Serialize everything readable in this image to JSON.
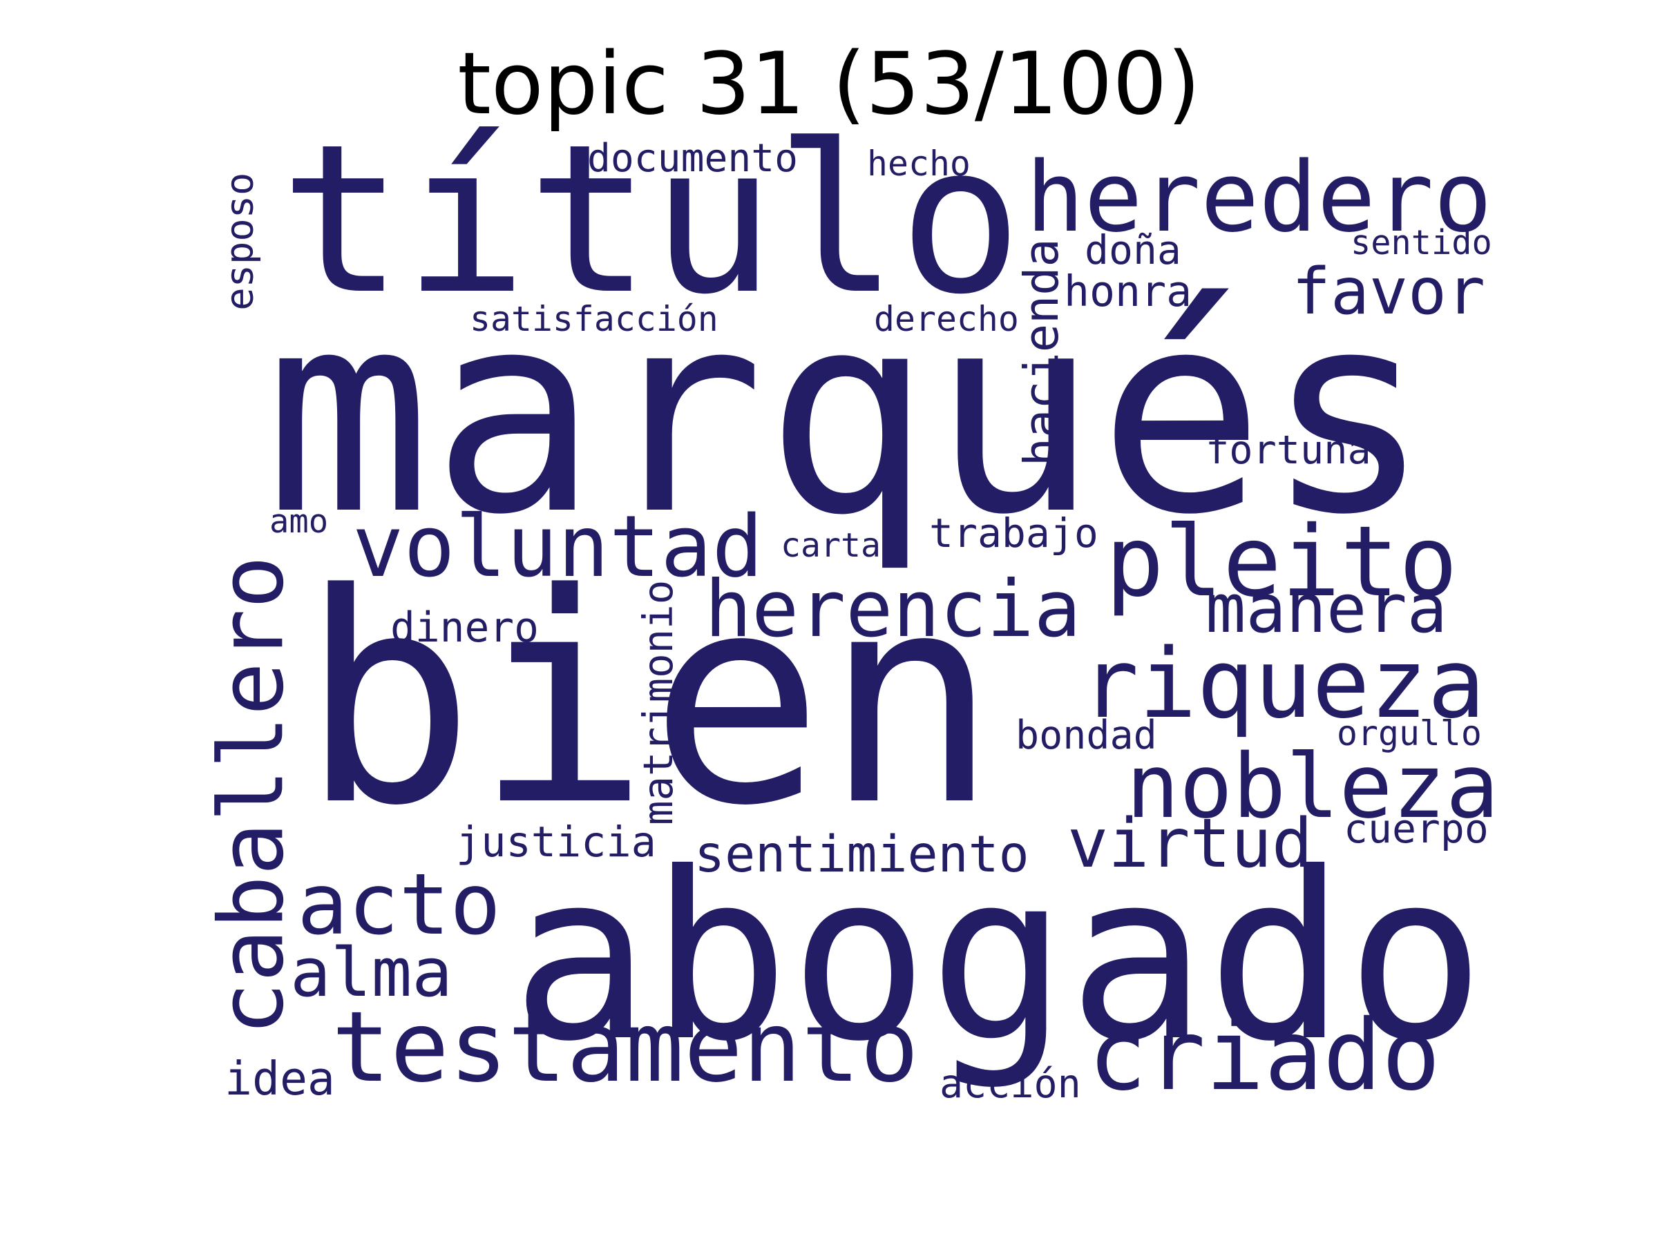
{
  "title": "topic 31 (53/100)",
  "word_color": "#221d64",
  "title_color": "#000000",
  "background": "#ffffff",
  "words": [
    {
      "text": "marqués",
      "orientation": "horizontal"
    },
    {
      "text": "bien",
      "orientation": "horizontal"
    },
    {
      "text": "título",
      "orientation": "horizontal"
    },
    {
      "text": "abogado",
      "orientation": "horizontal"
    },
    {
      "text": "heredero",
      "orientation": "horizontal"
    },
    {
      "text": "testamento",
      "orientation": "horizontal"
    },
    {
      "text": "caballero",
      "orientation": "vertical"
    },
    {
      "text": "pleito",
      "orientation": "horizontal"
    },
    {
      "text": "voluntad",
      "orientation": "horizontal"
    },
    {
      "text": "riqueza",
      "orientation": "horizontal"
    },
    {
      "text": "nobleza",
      "orientation": "horizontal"
    },
    {
      "text": "herencia",
      "orientation": "horizontal"
    },
    {
      "text": "criado",
      "orientation": "horizontal"
    },
    {
      "text": "acto",
      "orientation": "horizontal"
    },
    {
      "text": "favor",
      "orientation": "horizontal"
    },
    {
      "text": "manera",
      "orientation": "horizontal"
    },
    {
      "text": "virtud",
      "orientation": "horizontal"
    },
    {
      "text": "alma",
      "orientation": "horizontal"
    },
    {
      "text": "sentimiento",
      "orientation": "horizontal"
    },
    {
      "text": "hacienda",
      "orientation": "vertical"
    },
    {
      "text": "honra",
      "orientation": "horizontal"
    },
    {
      "text": "justicia",
      "orientation": "horizontal"
    },
    {
      "text": "documento",
      "orientation": "horizontal"
    },
    {
      "text": "matrimonio",
      "orientation": "vertical"
    },
    {
      "text": "trabajo",
      "orientation": "horizontal"
    },
    {
      "text": "doña",
      "orientation": "horizontal"
    },
    {
      "text": "idea",
      "orientation": "horizontal"
    },
    {
      "text": "fortuna",
      "orientation": "horizontal"
    },
    {
      "text": "dinero",
      "orientation": "horizontal"
    },
    {
      "text": "bondad",
      "orientation": "horizontal"
    },
    {
      "text": "acción",
      "orientation": "horizontal"
    },
    {
      "text": "cuerpo",
      "orientation": "horizontal"
    },
    {
      "text": "satisfacción",
      "orientation": "horizontal"
    },
    {
      "text": "esposo",
      "orientation": "vertical"
    },
    {
      "text": "derecho",
      "orientation": "horizontal"
    },
    {
      "text": "hecho",
      "orientation": "horizontal"
    },
    {
      "text": "sentido",
      "orientation": "horizontal"
    },
    {
      "text": "orgullo",
      "orientation": "horizontal"
    },
    {
      "text": "carta",
      "orientation": "horizontal"
    },
    {
      "text": "amo",
      "orientation": "horizontal"
    }
  ]
}
